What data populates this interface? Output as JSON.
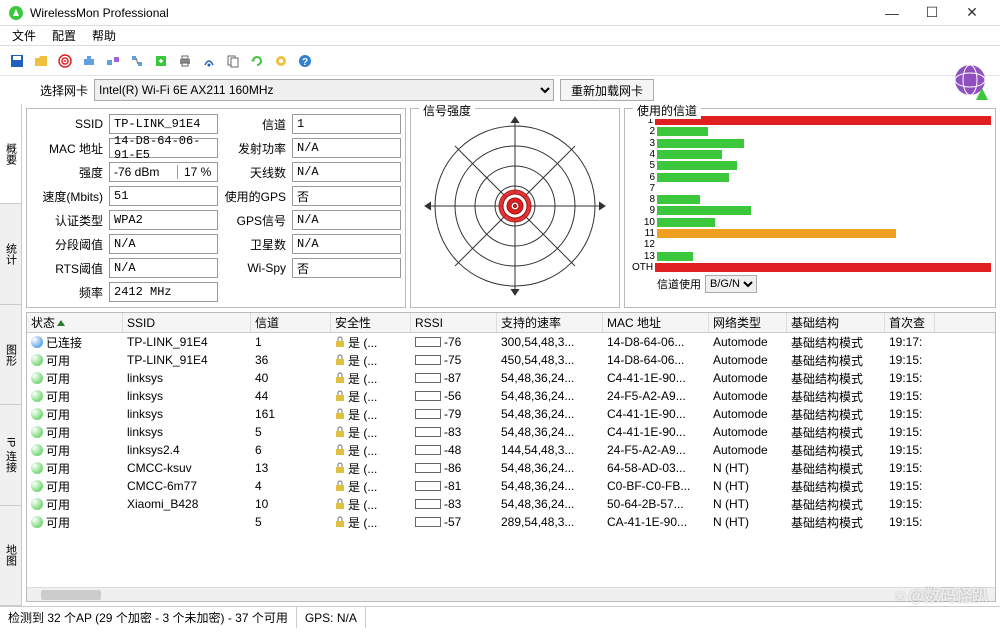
{
  "window": {
    "title": "WirelessMon Professional"
  },
  "menu": {
    "file": "文件",
    "config": "配置",
    "help": "帮助"
  },
  "toolbar": {
    "icons": [
      "save",
      "open",
      "target",
      "net1",
      "net2",
      "net3",
      "export",
      "print",
      "scan",
      "copy",
      "refresh",
      "settings",
      "help"
    ]
  },
  "adapter": {
    "label": "选择网卡",
    "selected": "Intel(R) Wi-Fi 6E AX211 160MHz",
    "reload": "重新加载网卡"
  },
  "sidetabs": [
    "概要",
    "统计",
    "图形",
    "IP 连接",
    "地图"
  ],
  "info": {
    "ssid_label": "SSID",
    "ssid": "TP-LINK_91E4",
    "mac_label": "MAC 地址",
    "mac": "14-D8-64-06-91-E5",
    "strength_label": "强度",
    "strength_dbm": "-76 dBm",
    "strength_pct": "17 %",
    "speed_label": "速度(Mbits)",
    "speed": "51",
    "auth_label": "认证类型",
    "auth": "WPA2",
    "frag_label": "分段阈值",
    "frag": "N/A",
    "rts_label": "RTS阈值",
    "rts": "N/A",
    "freq_label": "频率",
    "freq": "2412 MHz",
    "chan_label": "信道",
    "chan": "1",
    "txpower_label": "发射功率",
    "txpower": "N/A",
    "antenna_label": "天线数",
    "antenna": "N/A",
    "gps_label": "使用的GPS",
    "gps": "否",
    "gpssig_label": "GPS信号",
    "gpssig": "N/A",
    "sat_label": "卫星数",
    "sat": "N/A",
    "wispy_label": "Wi-Spy",
    "wispy": "否"
  },
  "signalbox": {
    "label": "信号强度"
  },
  "channelbox": {
    "label": "使用的信道",
    "rows": [
      {
        "ch": "1",
        "len": 100,
        "color": "#e02020"
      },
      {
        "ch": "2",
        "len": 14,
        "color": "#3cc83c"
      },
      {
        "ch": "3",
        "len": 24,
        "color": "#3cc83c"
      },
      {
        "ch": "4",
        "len": 18,
        "color": "#3cc83c"
      },
      {
        "ch": "5",
        "len": 22,
        "color": "#3cc83c"
      },
      {
        "ch": "6",
        "len": 20,
        "color": "#3cc83c"
      },
      {
        "ch": "7",
        "len": 0,
        "color": "#3cc83c"
      },
      {
        "ch": "8",
        "len": 12,
        "color": "#3cc83c"
      },
      {
        "ch": "9",
        "len": 26,
        "color": "#3cc83c"
      },
      {
        "ch": "10",
        "len": 16,
        "color": "#3cc83c"
      },
      {
        "ch": "11",
        "len": 66,
        "color": "#f0a020"
      },
      {
        "ch": "12",
        "len": 0,
        "color": "#3cc83c"
      },
      {
        "ch": "13",
        "len": 10,
        "color": "#3cc83c"
      },
      {
        "ch": "OTH",
        "len": 100,
        "color": "#e02020"
      }
    ],
    "select_label": "信道使用",
    "select_value": "B/G/N"
  },
  "list": {
    "headers": {
      "status": "状态",
      "ssid": "SSID",
      "chan": "信道",
      "sec": "安全性",
      "rssi": "RSSI",
      "rates": "支持的速率",
      "mac": "MAC 地址",
      "nettype": "网络类型",
      "infra": "基础结构",
      "seen": "首次查"
    },
    "sec_yes": "是 (...",
    "rows": [
      {
        "status": "已连接",
        "dot": "#2080e0",
        "ssid": "TP-LINK_91E4",
        "chan": "1",
        "rssi": -76,
        "rssi_color": "#3cc83c",
        "rssi_pct": 20,
        "rates": "300,54,48,3...",
        "mac": "14-D8-64-06...",
        "nettype": "Automode",
        "infra": "基础结构模式",
        "seen": "19:17:"
      },
      {
        "status": "可用",
        "dot": "#3cc83c",
        "ssid": "TP-LINK_91E4",
        "chan": "36",
        "rssi": -75,
        "rssi_color": "#3cc83c",
        "rssi_pct": 22,
        "rates": "450,54,48,3...",
        "mac": "14-D8-64-06...",
        "nettype": "Automode",
        "infra": "基础结构模式",
        "seen": "19:15:"
      },
      {
        "status": "可用",
        "dot": "#3cc83c",
        "ssid": "linksys",
        "chan": "40",
        "rssi": -87,
        "rssi_color": "#888",
        "rssi_pct": 6,
        "rates": "54,48,36,24...",
        "mac": "C4-41-1E-90...",
        "nettype": "Automode",
        "infra": "基础结构模式",
        "seen": "19:15:"
      },
      {
        "status": "可用",
        "dot": "#3cc83c",
        "ssid": "linksys",
        "chan": "44",
        "rssi": -56,
        "rssi_color": "#3cc83c",
        "rssi_pct": 45,
        "rates": "54,48,36,24...",
        "mac": "24-F5-A2-A9...",
        "nettype": "Automode",
        "infra": "基础结构模式",
        "seen": "19:15:"
      },
      {
        "status": "可用",
        "dot": "#3cc83c",
        "ssid": "linksys",
        "chan": "161",
        "rssi": -79,
        "rssi_color": "#3cc83c",
        "rssi_pct": 16,
        "rates": "54,48,36,24...",
        "mac": "C4-41-1E-90...",
        "nettype": "Automode",
        "infra": "基础结构模式",
        "seen": "19:15:"
      },
      {
        "status": "可用",
        "dot": "#3cc83c",
        "ssid": "linksys",
        "chan": "5",
        "rssi": -83,
        "rssi_color": "#888",
        "rssi_pct": 10,
        "rates": "54,48,36,24...",
        "mac": "C4-41-1E-90...",
        "nettype": "Automode",
        "infra": "基础结构模式",
        "seen": "19:15:"
      },
      {
        "status": "可用",
        "dot": "#3cc83c",
        "ssid": "linksys2.4",
        "chan": "6",
        "rssi": -48,
        "rssi_color": "#3cc83c",
        "rssi_pct": 55,
        "rates": "144,54,48,3...",
        "mac": "24-F5-A2-A9...",
        "nettype": "Automode",
        "infra": "基础结构模式",
        "seen": "19:15:"
      },
      {
        "status": "可用",
        "dot": "#3cc83c",
        "ssid": "CMCC-ksuv",
        "chan": "13",
        "rssi": -86,
        "rssi_color": "#888",
        "rssi_pct": 7,
        "rates": "54,48,36,24...",
        "mac": "64-58-AD-03...",
        "nettype": "N (HT)",
        "infra": "基础结构模式",
        "seen": "19:15:"
      },
      {
        "status": "可用",
        "dot": "#3cc83c",
        "ssid": "CMCC-6m77",
        "chan": "4",
        "rssi": -81,
        "rssi_color": "#888",
        "rssi_pct": 12,
        "rates": "54,48,36,24...",
        "mac": "C0-BF-C0-FB...",
        "nettype": "N (HT)",
        "infra": "基础结构模式",
        "seen": "19:15:"
      },
      {
        "status": "可用",
        "dot": "#3cc83c",
        "ssid": "Xiaomi_B428",
        "chan": "10",
        "rssi": -83,
        "rssi_color": "#888",
        "rssi_pct": 10,
        "rates": "54,48,36,24...",
        "mac": "50-64-2B-57...",
        "nettype": "N (HT)",
        "infra": "基础结构模式",
        "seen": "19:15:"
      },
      {
        "status": "可用",
        "dot": "#3cc83c",
        "ssid": "",
        "chan": "5",
        "rssi": -57,
        "rssi_color": "#3cc83c",
        "rssi_pct": 44,
        "rates": "289,54,48,3...",
        "mac": "CA-41-1E-90...",
        "nettype": "N (HT)",
        "infra": "基础结构模式",
        "seen": "19:15:"
      }
    ]
  },
  "statusbar": {
    "aps": "检测到 32 个AP (29 个加密 - 3 个未加密) - 37 个可用",
    "gps": "GPS: N/A"
  },
  "watermark": "☺@数码怪趴"
}
